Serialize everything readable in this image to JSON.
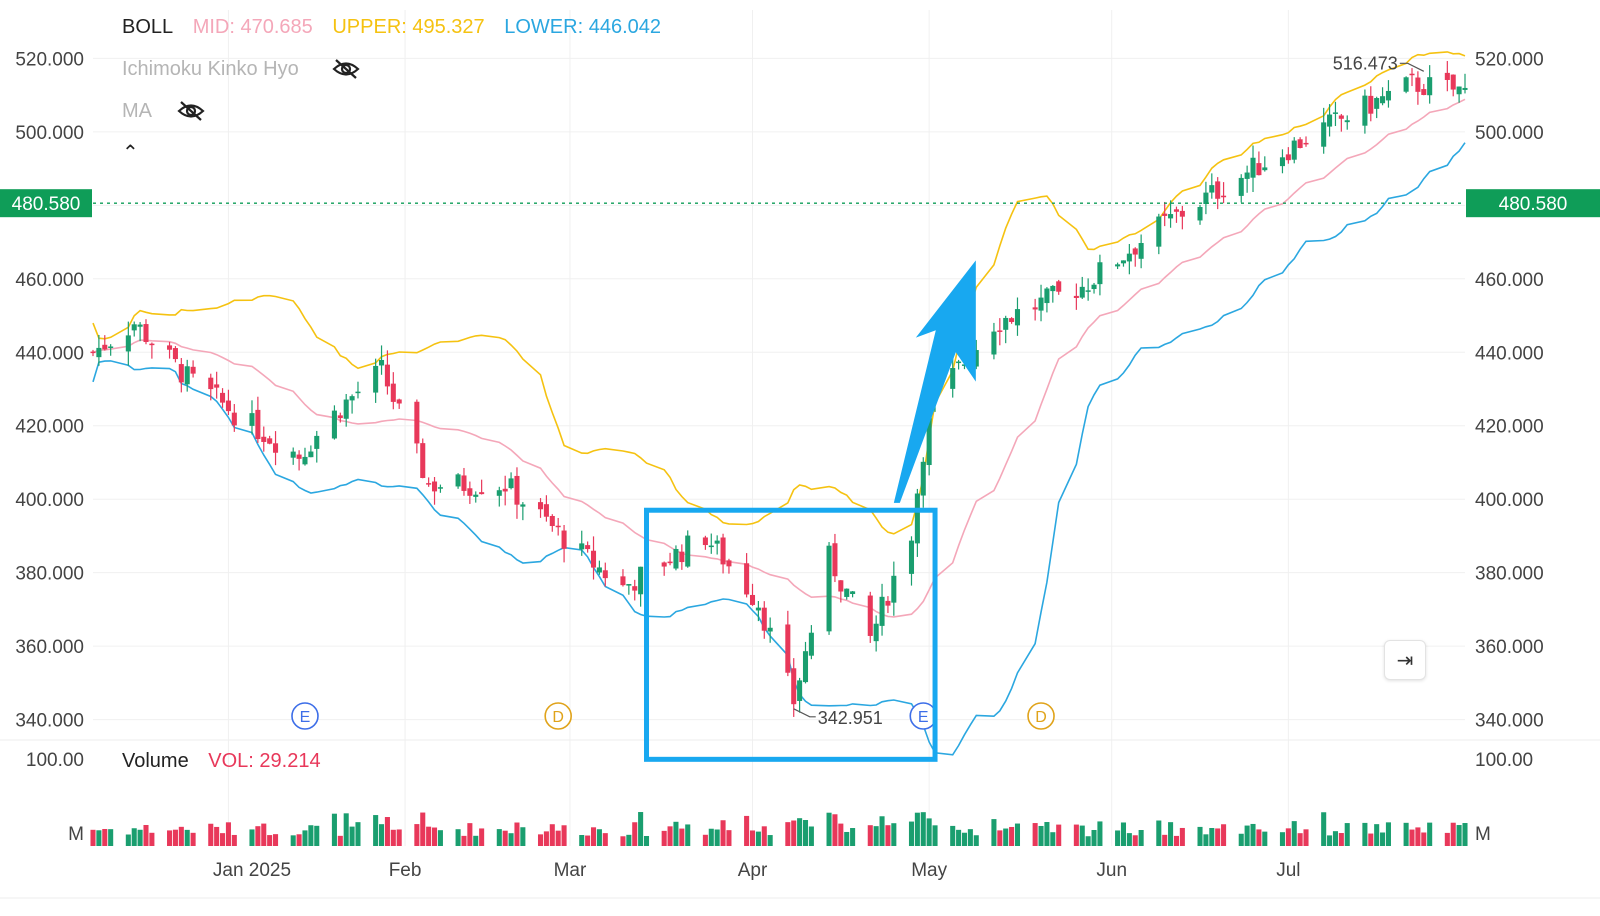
{
  "indicators": {
    "boll": {
      "name": "BOLL",
      "mid_label": "MID: 470.685",
      "upper_label": "UPPER: 495.327",
      "lower_label": "LOWER: 446.042"
    },
    "ichimoku": {
      "name": "Ichimoku Kinko Hyo",
      "icon": "eye-off-icon"
    },
    "ma": {
      "name": "MA",
      "icon": "eye-off-icon"
    },
    "collapse_icon": "chevron-up-icon"
  },
  "volume": {
    "name": "Volume",
    "vol_label": "VOL: 29.214",
    "y_tick": "100.00",
    "unit": "M"
  },
  "price_axis": {
    "ticks": [
      "520.000",
      "500.000",
      "460.000",
      "440.000",
      "420.000",
      "400.000",
      "380.000",
      "360.000",
      "340.000"
    ]
  },
  "current_price": {
    "label": "480.580",
    "value": 480.58,
    "color": "#0f9d58"
  },
  "annotations": {
    "high": {
      "label": "516.473",
      "value": 516.473
    },
    "low": {
      "label": "342.951",
      "value": 342.951
    }
  },
  "events": [
    {
      "label": "E",
      "month": "Jan"
    },
    {
      "label": "D",
      "month": "Feb"
    },
    {
      "label": "E",
      "month": "May"
    },
    {
      "label": "D",
      "month": "May"
    }
  ],
  "goto_icon": "go-to-latest-icon",
  "colors": {
    "up": "#1a9e6f",
    "down": "#e8385a",
    "mid": "#f4a7b9",
    "upper": "#f5c211",
    "lower": "#2ba7e0",
    "highlight": "#18a8f0"
  },
  "chart_data": {
    "type": "candlestick",
    "title": "",
    "x_ticks": [
      "Jan 2025",
      "Feb",
      "Mar",
      "Apr",
      "May",
      "Jun",
      "Jul"
    ],
    "ylim": [
      335,
      525
    ],
    "volume_ylim": [
      0,
      100
    ],
    "price_trend_keypoints": [
      {
        "date": "2024-12-10",
        "close": 440
      },
      {
        "date": "2024-12-17",
        "close": 448
      },
      {
        "date": "2024-12-26",
        "close": 433
      },
      {
        "date": "2025-01-06",
        "close": 420
      },
      {
        "date": "2025-01-14",
        "close": 412
      },
      {
        "date": "2025-01-21",
        "close": 425
      },
      {
        "date": "2025-01-28",
        "close": 435
      },
      {
        "date": "2025-02-05",
        "close": 404
      },
      {
        "date": "2025-02-18",
        "close": 404
      },
      {
        "date": "2025-03-03",
        "close": 385
      },
      {
        "date": "2025-03-10",
        "close": 376
      },
      {
        "date": "2025-03-24",
        "close": 390
      },
      {
        "date": "2025-04-02",
        "close": 372
      },
      {
        "date": "2025-04-08",
        "close": 345
      },
      {
        "date": "2025-04-14",
        "close": 384
      },
      {
        "date": "2025-04-21",
        "close": 362
      },
      {
        "date": "2025-04-28",
        "close": 391
      },
      {
        "date": "2025-05-01",
        "close": 425
      },
      {
        "date": "2025-05-12",
        "close": 448
      },
      {
        "date": "2025-05-27",
        "close": 458
      },
      {
        "date": "2025-06-09",
        "close": 474
      },
      {
        "date": "2025-06-24",
        "close": 489
      },
      {
        "date": "2025-07-07",
        "close": 501
      },
      {
        "date": "2025-07-22",
        "close": 513
      },
      {
        "date": "2025-07-31",
        "close": 511
      }
    ],
    "bollinger": {
      "mid_last": 470.685,
      "upper_last": 495.327,
      "lower_last": 446.042
    },
    "series": [
      {
        "name": "MID",
        "values_ref": "bollinger.mid"
      },
      {
        "name": "UPPER",
        "values_ref": "bollinger.upper"
      },
      {
        "name": "LOWER",
        "values_ref": "bollinger.lower"
      }
    ],
    "last_price": 480.58,
    "highlight_region": {
      "from": "2025-03-14",
      "to": "2025-05-02"
    }
  }
}
